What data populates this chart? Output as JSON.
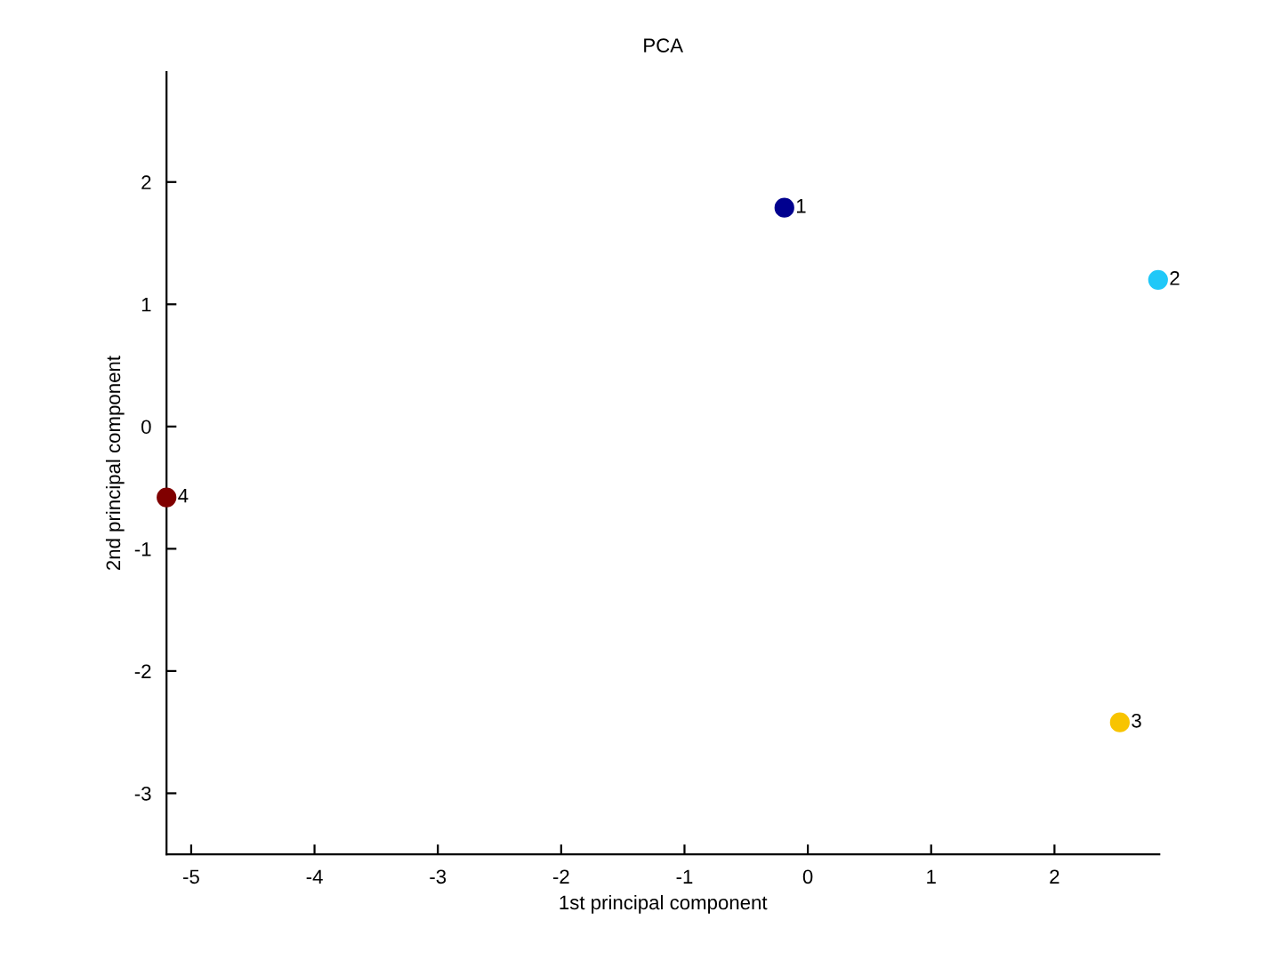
{
  "chart_data": {
    "type": "scatter",
    "title": "PCA",
    "xlabel": "1st principal component",
    "ylabel": "2nd principal component",
    "x": [
      -0.19,
      2.84,
      2.53,
      -5.2
    ],
    "values": [
      1.79,
      1.2,
      -2.42,
      -0.58
    ],
    "colors": [
      "#00008f",
      "#20c8f8",
      "#f8c400",
      "#800000"
    ],
    "marker": "circle",
    "xlim": [
      -5.2,
      2.85
    ],
    "ylim": [
      -3.5,
      2.9
    ],
    "xticks": [
      -5,
      -4,
      -3,
      -2,
      -1,
      0,
      1,
      2
    ],
    "yticks": [
      -3,
      -2,
      -1,
      0,
      1,
      2
    ],
    "grid": false,
    "annotations": [
      {
        "text": "1",
        "x": -0.19,
        "y": 1.79
      },
      {
        "text": "2",
        "x": 2.84,
        "y": 1.2
      },
      {
        "text": "3",
        "x": 2.53,
        "y": -2.42
      },
      {
        "text": "4",
        "x": -5.2,
        "y": -0.58
      }
    ]
  }
}
